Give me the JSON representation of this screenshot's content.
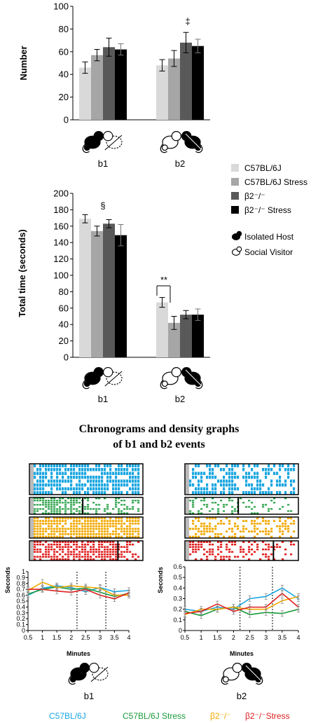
{
  "colors": {
    "c57": "#d9d9d9",
    "c57s": "#a6a6a6",
    "b2": "#595959",
    "b2s": "#000000",
    "line_c57": "#1aa6e0",
    "line_c57s": "#1a9a3a",
    "line_b2": "#f2a900",
    "line_b2s": "#e02020"
  },
  "legend": {
    "items": [
      {
        "label": "C57BL/6J",
        "color": "#d9d9d9"
      },
      {
        "label": "C57BL/6J Stress",
        "color": "#a6a6a6"
      },
      {
        "label": "β2⁻/⁻",
        "color": "#595959"
      },
      {
        "label": "β2⁻/⁻ Stress",
        "color": "#000000"
      }
    ],
    "mice": [
      {
        "label": "Isolated Host",
        "icon": "filled-mouse-icon"
      },
      {
        "label": "Social Visitor",
        "icon": "outline-mouse-icon"
      }
    ]
  },
  "section_title": {
    "line1": "Chronograms and density graphs",
    "line2": "of b1 and b2 events"
  },
  "bottom_legend": [
    {
      "label": "C57BL/6J",
      "color": "#1aa6e0"
    },
    {
      "label": "C57BL/6J Stress",
      "color": "#1a9a3a"
    },
    {
      "label": "β2⁻/⁻",
      "color": "#f2a900"
    },
    {
      "label": "β2⁻/⁻Stress",
      "color": "#e02020"
    }
  ],
  "chart_data": [
    {
      "type": "bar",
      "ylabel": "Number",
      "ylim": [
        0,
        100
      ],
      "yticks": [
        0,
        20,
        40,
        60,
        80,
        100
      ],
      "categories": [
        "b1",
        "b2"
      ],
      "series": [
        {
          "name": "C57BL/6J",
          "values": [
            46,
            48
          ],
          "err": [
            5,
            5
          ]
        },
        {
          "name": "C57BL/6J Stress",
          "values": [
            57,
            54
          ],
          "err": [
            5,
            7
          ]
        },
        {
          "name": "β2⁻/⁻",
          "values": [
            64,
            68
          ],
          "err": [
            8,
            9
          ]
        },
        {
          "name": "β2⁻/⁻ Stress",
          "values": [
            62,
            65
          ],
          "err": [
            5,
            6
          ]
        }
      ],
      "annotations": [
        {
          "text": "‡",
          "category": "b2"
        }
      ]
    },
    {
      "type": "bar",
      "ylabel": "Total time  (seconds)",
      "ylim": [
        0,
        200
      ],
      "yticks": [
        0,
        20,
        40,
        60,
        80,
        100,
        120,
        140,
        160,
        180,
        200
      ],
      "categories": [
        "b1",
        "b2"
      ],
      "series": [
        {
          "name": "C57BL/6J",
          "values": [
            169,
            67
          ],
          "err": [
            5,
            6
          ]
        },
        {
          "name": "C57BL/6J Stress",
          "values": [
            154,
            42
          ],
          "err": [
            6,
            8
          ]
        },
        {
          "name": "β2⁻/⁻",
          "values": [
            163,
            52
          ],
          "err": [
            5,
            5
          ]
        },
        {
          "name": "β2⁻/⁻ Stress",
          "values": [
            149,
            52
          ],
          "err": [
            13,
            7
          ]
        }
      ],
      "annotations": [
        {
          "text": "§",
          "category": "b1"
        },
        {
          "text": "**",
          "category": "b2"
        }
      ]
    },
    {
      "type": "line",
      "xlabel": "Minutes",
      "ylabel": "Seconds",
      "category": "b1",
      "xlim": [
        0.5,
        4
      ],
      "ylim": [
        0,
        1
      ],
      "xticks": [
        0.5,
        1,
        1.5,
        2,
        2.5,
        3,
        3.5,
        4
      ],
      "yticks": [
        0,
        0.1,
        0.2,
        0.3,
        0.4,
        0.5,
        0.6,
        0.7,
        0.8,
        0.9,
        1
      ],
      "vlines": [
        2.2,
        3.2
      ],
      "x": [
        0.5,
        1,
        1.5,
        2,
        2.5,
        3,
        3.5,
        4
      ],
      "series": [
        {
          "name": "C57BL/6J",
          "values": [
            0.6,
            0.72,
            0.76,
            0.73,
            0.66,
            0.73,
            0.66,
            0.68
          ]
        },
        {
          "name": "C57BL/6J Stress",
          "values": [
            0.62,
            0.7,
            0.74,
            0.7,
            0.72,
            0.65,
            0.58,
            0.63
          ]
        },
        {
          "name": "β2⁻/⁻",
          "values": [
            0.68,
            0.82,
            0.73,
            0.76,
            0.74,
            0.72,
            0.6,
            0.6
          ]
        },
        {
          "name": "β2⁻/⁻ Stress",
          "values": [
            0.7,
            0.7,
            0.67,
            0.65,
            0.7,
            0.6,
            0.54,
            0.64
          ]
        }
      ]
    },
    {
      "type": "line",
      "xlabel": "Minutes",
      "ylabel": "Seconds",
      "category": "b2",
      "xlim": [
        0.5,
        4
      ],
      "ylim": [
        0,
        0.6
      ],
      "xticks": [
        0.5,
        1,
        1.5,
        2,
        2.5,
        3,
        3.5,
        4
      ],
      "yticks": [
        0,
        0.1,
        0.2,
        0.3,
        0.4,
        0.5,
        0.6
      ],
      "vlines": [
        2.2,
        3.2
      ],
      "x": [
        0.5,
        1,
        1.5,
        2,
        2.5,
        3,
        3.5,
        4
      ],
      "series": [
        {
          "name": "C57BL/6J",
          "values": [
            0.2,
            0.18,
            0.22,
            0.2,
            0.3,
            0.32,
            0.4,
            0.3
          ]
        },
        {
          "name": "C57BL/6J Stress",
          "values": [
            0.18,
            0.14,
            0.2,
            0.22,
            0.15,
            0.17,
            0.16,
            0.2
          ]
        },
        {
          "name": "β2⁻/⁻",
          "values": [
            0.15,
            0.2,
            0.2,
            0.22,
            0.2,
            0.2,
            0.28,
            0.32
          ]
        },
        {
          "name": "β2⁻/⁻ Stress",
          "values": [
            0.16,
            0.18,
            0.25,
            0.18,
            0.22,
            0.22,
            0.35,
            0.22
          ]
        }
      ]
    }
  ]
}
